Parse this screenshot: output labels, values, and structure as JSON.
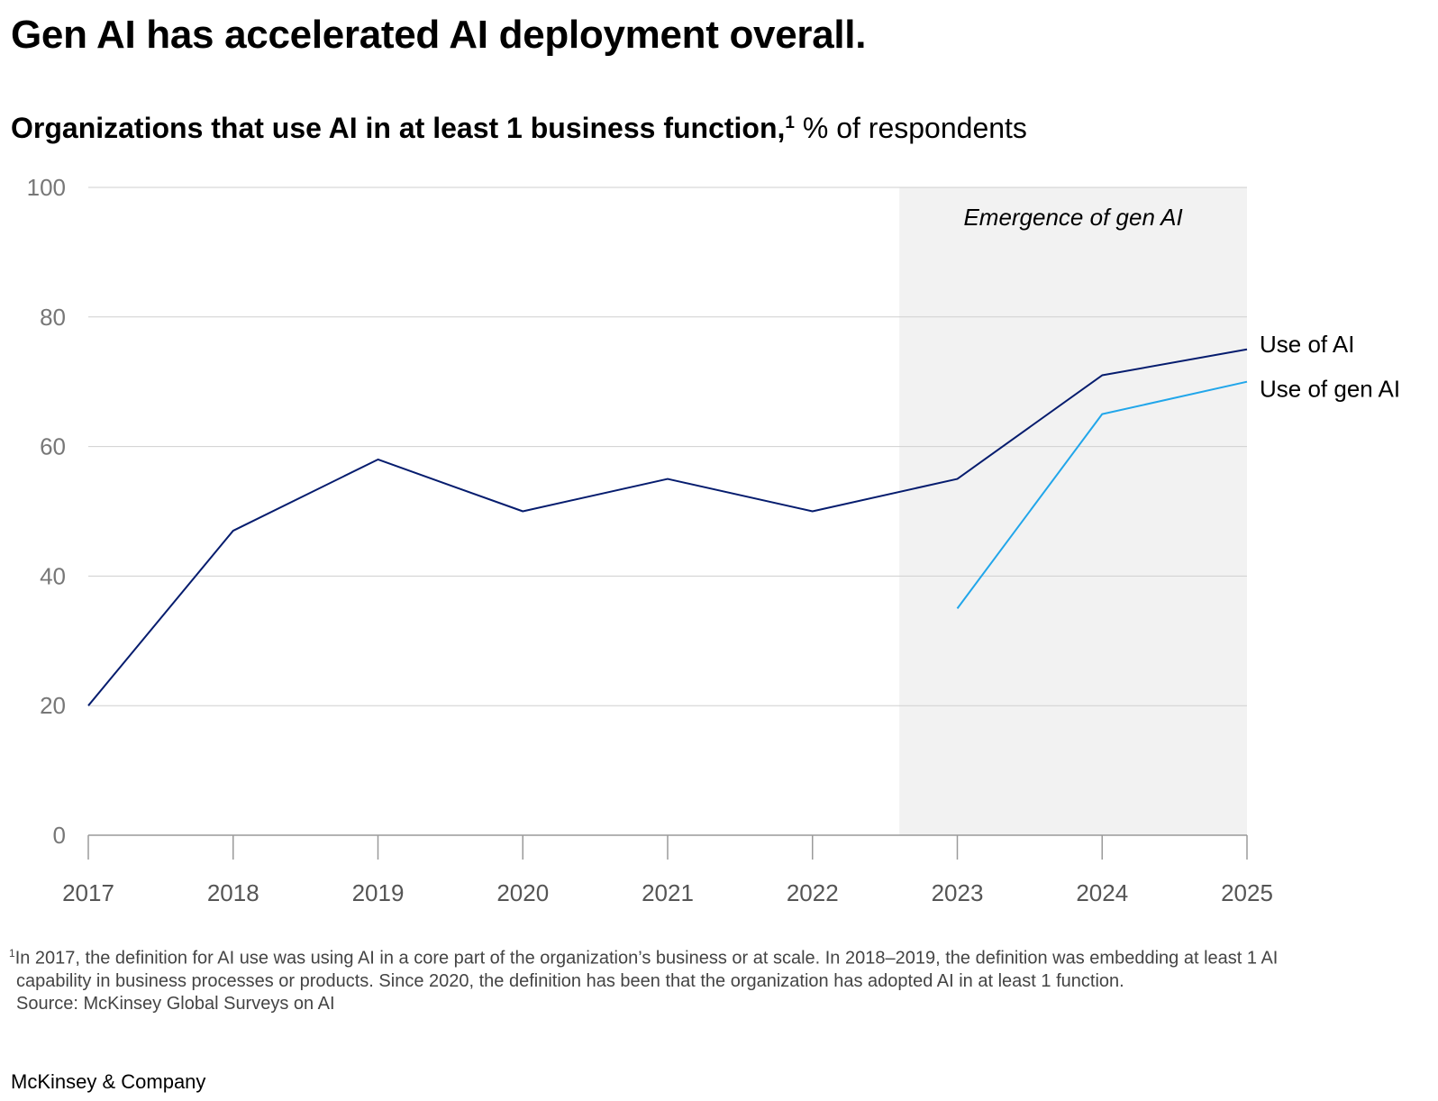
{
  "title": "Gen AI has accelerated AI deployment overall.",
  "subtitle": {
    "bold": "Organizations that use AI in at least 1 business function,",
    "footnote_marker": "1",
    "unit": " % of respondents"
  },
  "chart_data": {
    "type": "line",
    "x": [
      "2017",
      "2018",
      "2019",
      "2020",
      "2021",
      "2022",
      "2023",
      "2024",
      "2025"
    ],
    "ylim": [
      0,
      100
    ],
    "yticks": [
      "0",
      "20",
      "40",
      "60",
      "80",
      "100"
    ],
    "grid": true,
    "series": [
      {
        "name": "Use of AI",
        "color": "#051c6e",
        "values": [
          20,
          47,
          58,
          50,
          55,
          50,
          55,
          71,
          75
        ]
      },
      {
        "name": "Use of gen AI",
        "color": "#21a6ea",
        "values": [
          null,
          null,
          null,
          null,
          null,
          null,
          35,
          65,
          70
        ]
      }
    ],
    "annotation": {
      "text": "Emergence of gen AI",
      "x_from": "2022.6",
      "x_to": "2025",
      "color": "#f2f2f2"
    },
    "legend": "inline-right"
  },
  "footnote": {
    "line1": "In 2017, the definition for AI use was using AI in a core part of the organization’s business or at scale. In 2018–2019, the definition was embedding at least 1 AI",
    "line2": "capability in business processes or products. Since 2020, the definition has been that the organization has adopted AI in at least 1 function.",
    "source": "Source: McKinsey Global Surveys on AI",
    "marker": "1"
  },
  "brand": "McKinsey & Company"
}
